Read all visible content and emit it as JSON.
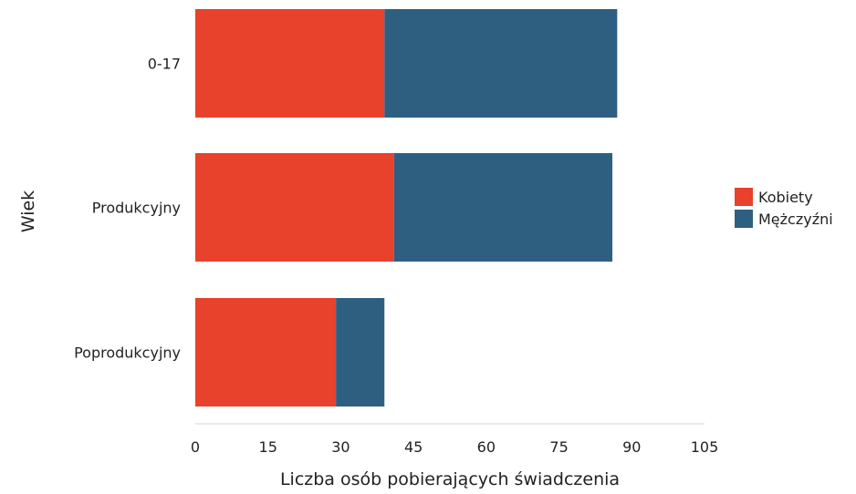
{
  "chart_data": {
    "type": "bar",
    "orientation": "horizontal",
    "stacked": true,
    "categories": [
      "0-17",
      "Produkcyjny",
      "Poprodukcyjny"
    ],
    "series": [
      {
        "name": "Kobiety",
        "color": "#e8412c",
        "values": [
          39,
          41,
          29
        ]
      },
      {
        "name": "Mężczyźni",
        "color": "#2f5f80",
        "values": [
          48,
          45,
          10
        ]
      }
    ],
    "xlabel": "Liczba osób pobierających świadczenia",
    "ylabel": "Wiek",
    "xlim": [
      0,
      105
    ],
    "xticks": [
      0,
      15,
      30,
      45,
      60,
      75,
      90,
      105
    ],
    "grid": false,
    "legend_position": "right"
  }
}
